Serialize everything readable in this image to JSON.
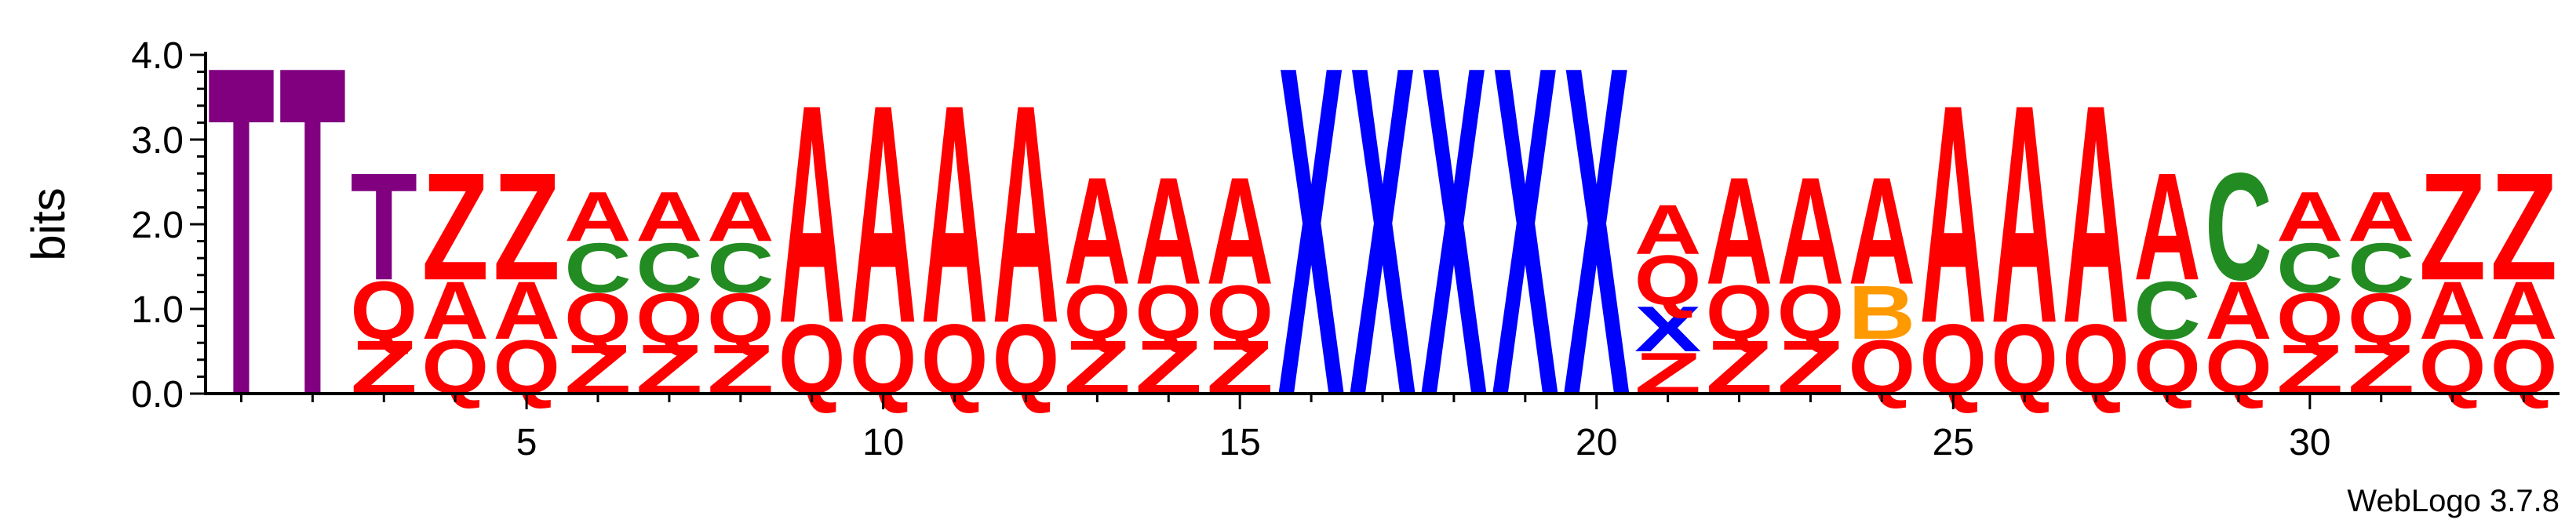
{
  "chart_data": {
    "type": "sequence-logo",
    "ylabel": "bits",
    "ylim": [
      0,
      4.0
    ],
    "y_ticks": [
      0.0,
      1.0,
      2.0,
      3.0,
      4.0
    ],
    "y_tick_labels": [
      "0.0",
      "1.0",
      "2.0",
      "3.0",
      "4.0"
    ],
    "x_ticks": [
      5,
      10,
      15,
      20,
      25,
      30
    ],
    "x_tick_labels": [
      "5",
      "10",
      "15",
      "20",
      "25",
      "30"
    ],
    "xlim": [
      0.5,
      33.5
    ],
    "footer": "WebLogo 3.7.8",
    "colors": {
      "A": "#ff0000",
      "Q": "#ff0000",
      "Z": "#ff0000",
      "C": "#228b22",
      "T": "#800080",
      "X": "#0000ff",
      "B": "#ff9900"
    },
    "positions": [
      {
        "pos": 1,
        "stack": [
          {
            "letter": "T",
            "height": 4.0
          }
        ]
      },
      {
        "pos": 2,
        "stack": [
          {
            "letter": "T",
            "height": 4.0
          }
        ]
      },
      {
        "pos": 3,
        "stack": [
          {
            "letter": "Z",
            "height": 0.65
          },
          {
            "letter": "Q",
            "height": 0.7
          },
          {
            "letter": "T",
            "height": 1.3
          }
        ]
      },
      {
        "pos": 4,
        "stack": [
          {
            "letter": "Q",
            "height": 0.65
          },
          {
            "letter": "A",
            "height": 0.7
          },
          {
            "letter": "Z",
            "height": 1.3
          }
        ]
      },
      {
        "pos": 5,
        "stack": [
          {
            "letter": "Q",
            "height": 0.65
          },
          {
            "letter": "A",
            "height": 0.7
          },
          {
            "letter": "Z",
            "height": 1.3
          }
        ]
      },
      {
        "pos": 6,
        "stack": [
          {
            "letter": "Z",
            "height": 0.6
          },
          {
            "letter": "Q",
            "height": 0.6
          },
          {
            "letter": "C",
            "height": 0.6
          },
          {
            "letter": "A",
            "height": 0.6
          }
        ]
      },
      {
        "pos": 7,
        "stack": [
          {
            "letter": "Z",
            "height": 0.6
          },
          {
            "letter": "Q",
            "height": 0.6
          },
          {
            "letter": "C",
            "height": 0.6
          },
          {
            "letter": "A",
            "height": 0.6
          }
        ]
      },
      {
        "pos": 8,
        "stack": [
          {
            "letter": "Z",
            "height": 0.6
          },
          {
            "letter": "Q",
            "height": 0.6
          },
          {
            "letter": "C",
            "height": 0.6
          },
          {
            "letter": "A",
            "height": 0.6
          }
        ]
      },
      {
        "pos": 9,
        "stack": [
          {
            "letter": "Q",
            "height": 0.85
          },
          {
            "letter": "A",
            "height": 2.65
          }
        ]
      },
      {
        "pos": 10,
        "stack": [
          {
            "letter": "Q",
            "height": 0.85
          },
          {
            "letter": "A",
            "height": 2.65
          }
        ]
      },
      {
        "pos": 11,
        "stack": [
          {
            "letter": "Q",
            "height": 0.85
          },
          {
            "letter": "A",
            "height": 2.65
          }
        ]
      },
      {
        "pos": 12,
        "stack": [
          {
            "letter": "Q",
            "height": 0.85
          },
          {
            "letter": "A",
            "height": 2.65
          }
        ]
      },
      {
        "pos": 13,
        "stack": [
          {
            "letter": "Z",
            "height": 0.65
          },
          {
            "letter": "Q",
            "height": 0.65
          },
          {
            "letter": "A",
            "height": 1.3
          }
        ]
      },
      {
        "pos": 14,
        "stack": [
          {
            "letter": "Z",
            "height": 0.65
          },
          {
            "letter": "Q",
            "height": 0.65
          },
          {
            "letter": "A",
            "height": 1.3
          }
        ]
      },
      {
        "pos": 15,
        "stack": [
          {
            "letter": "Z",
            "height": 0.65
          },
          {
            "letter": "Q",
            "height": 0.65
          },
          {
            "letter": "A",
            "height": 1.3
          }
        ]
      },
      {
        "pos": 16,
        "stack": [
          {
            "letter": "X",
            "height": 4.0
          }
        ]
      },
      {
        "pos": 17,
        "stack": [
          {
            "letter": "X",
            "height": 4.0
          }
        ]
      },
      {
        "pos": 18,
        "stack": [
          {
            "letter": "X",
            "height": 4.0
          }
        ]
      },
      {
        "pos": 19,
        "stack": [
          {
            "letter": "X",
            "height": 4.0
          }
        ]
      },
      {
        "pos": 20,
        "stack": [
          {
            "letter": "X",
            "height": 4.0
          }
        ]
      },
      {
        "pos": 21,
        "stack": [
          {
            "letter": "Z",
            "height": 0.5
          },
          {
            "letter": "X",
            "height": 0.55
          },
          {
            "letter": "Q",
            "height": 0.6
          },
          {
            "letter": "A",
            "height": 0.6
          }
        ]
      },
      {
        "pos": 22,
        "stack": [
          {
            "letter": "Z",
            "height": 0.65
          },
          {
            "letter": "Q",
            "height": 0.65
          },
          {
            "letter": "A",
            "height": 1.3
          }
        ]
      },
      {
        "pos": 23,
        "stack": [
          {
            "letter": "Z",
            "height": 0.65
          },
          {
            "letter": "Q",
            "height": 0.65
          },
          {
            "letter": "A",
            "height": 1.3
          }
        ]
      },
      {
        "pos": 24,
        "stack": [
          {
            "letter": "Q",
            "height": 0.65
          },
          {
            "letter": "B",
            "height": 0.65
          },
          {
            "letter": "A",
            "height": 1.3
          }
        ]
      },
      {
        "pos": 25,
        "stack": [
          {
            "letter": "Q",
            "height": 0.85
          },
          {
            "letter": "A",
            "height": 2.65
          }
        ]
      },
      {
        "pos": 26,
        "stack": [
          {
            "letter": "Q",
            "height": 0.85
          },
          {
            "letter": "A",
            "height": 2.65
          }
        ]
      },
      {
        "pos": 27,
        "stack": [
          {
            "letter": "Q",
            "height": 0.85
          },
          {
            "letter": "A",
            "height": 2.65
          }
        ]
      },
      {
        "pos": 28,
        "stack": [
          {
            "letter": "Q",
            "height": 0.65
          },
          {
            "letter": "C",
            "height": 0.7
          },
          {
            "letter": "A",
            "height": 1.3
          }
        ]
      },
      {
        "pos": 29,
        "stack": [
          {
            "letter": "Q",
            "height": 0.65
          },
          {
            "letter": "A",
            "height": 0.7
          },
          {
            "letter": "C",
            "height": 1.3
          }
        ]
      },
      {
        "pos": 30,
        "stack": [
          {
            "letter": "Z",
            "height": 0.6
          },
          {
            "letter": "Q",
            "height": 0.6
          },
          {
            "letter": "C",
            "height": 0.6
          },
          {
            "letter": "A",
            "height": 0.6
          }
        ]
      },
      {
        "pos": 31,
        "stack": [
          {
            "letter": "Z",
            "height": 0.6
          },
          {
            "letter": "Q",
            "height": 0.6
          },
          {
            "letter": "C",
            "height": 0.6
          },
          {
            "letter": "A",
            "height": 0.6
          }
        ]
      },
      {
        "pos": 32,
        "stack": [
          {
            "letter": "Q",
            "height": 0.65
          },
          {
            "letter": "A",
            "height": 0.7
          },
          {
            "letter": "Z",
            "height": 1.3
          }
        ]
      },
      {
        "pos": 33,
        "stack": [
          {
            "letter": "Q",
            "height": 0.65
          },
          {
            "letter": "A",
            "height": 0.7
          },
          {
            "letter": "Z",
            "height": 1.3
          }
        ]
      }
    ]
  }
}
